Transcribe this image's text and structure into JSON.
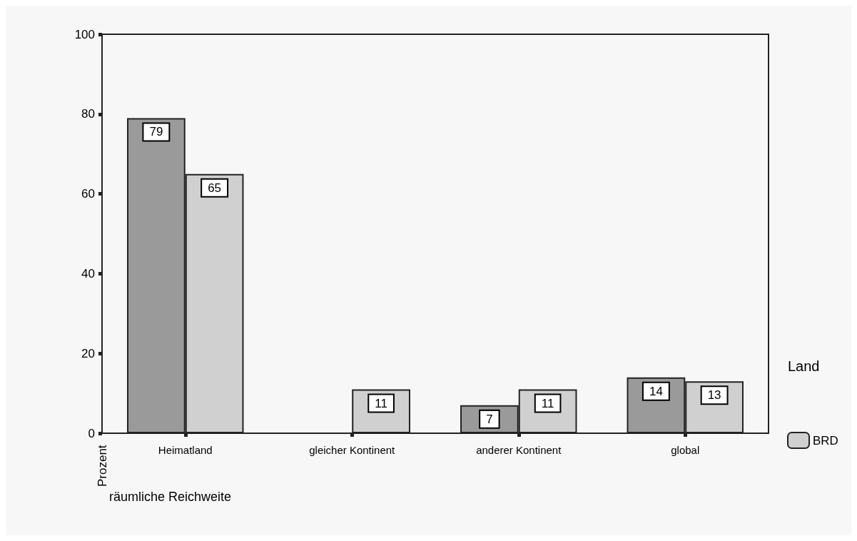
{
  "chart_data": {
    "type": "bar",
    "xlabel": "räumliche Reichweite",
    "ylabel": "Prozent",
    "legend_title": "Land",
    "categories": [
      "Heimatland",
      "gleicher Kontinent",
      "anderer Kontinent",
      "global"
    ],
    "series": [
      {
        "color": "#9a9a9a",
        "values": [
          79,
          null,
          7,
          14
        ]
      },
      {
        "name": "BRD",
        "color": "#d0d0d0",
        "values": [
          65,
          11,
          11,
          13
        ]
      }
    ],
    "ylim": [
      0,
      100
    ],
    "yticks": [
      0,
      20,
      40,
      60,
      80,
      100
    ],
    "grid": false,
    "legend": "right",
    "data_labels": true
  }
}
